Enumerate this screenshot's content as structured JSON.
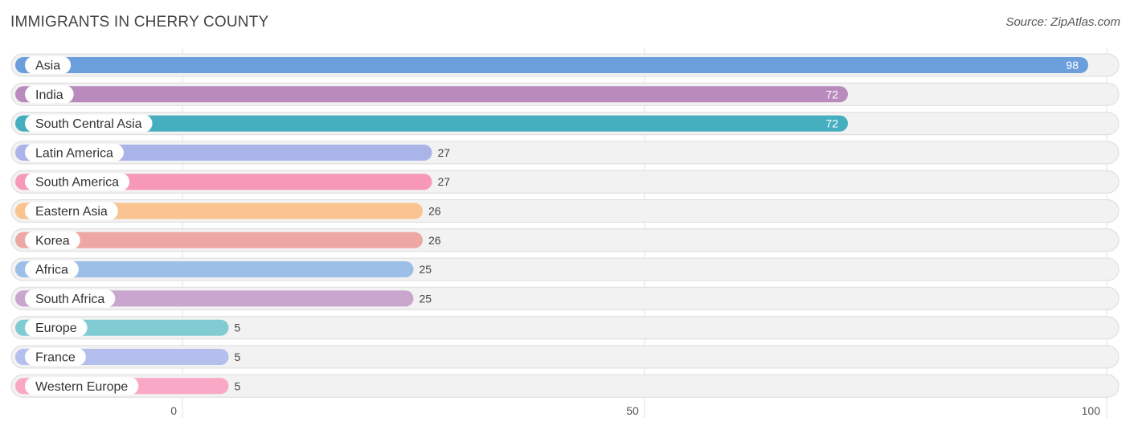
{
  "title": "IMMIGRANTS IN CHERRY COUNTY",
  "source": "Source: ZipAtlas.com",
  "chart_data": {
    "type": "bar",
    "orientation": "horizontal",
    "title": "IMMIGRANTS IN CHERRY COUNTY",
    "xlabel": "",
    "ylabel": "",
    "xlim": [
      0,
      100
    ],
    "ticks": [
      0,
      50,
      100
    ],
    "tick_labels": [
      "0",
      "50",
      "100"
    ],
    "categories": [
      "Asia",
      "India",
      "South Central Asia",
      "Latin America",
      "South America",
      "Eastern Asia",
      "Korea",
      "Africa",
      "South Africa",
      "Europe",
      "France",
      "Western Europe"
    ],
    "values": [
      98,
      72,
      72,
      27,
      27,
      26,
      26,
      25,
      25,
      5,
      5,
      5
    ],
    "value_labels": [
      "98",
      "72",
      "72",
      "27",
      "27",
      "26",
      "26",
      "25",
      "25",
      "5",
      "5",
      "5"
    ],
    "colors": [
      "#6a9fdc",
      "#b98bbc",
      "#45afc0",
      "#aab4e8",
      "#f798b8",
      "#f9c48f",
      "#eda8a4",
      "#9bbfe6",
      "#c9a6cd",
      "#80ccd2",
      "#b4bfee",
      "#f9a9c6"
    ]
  }
}
